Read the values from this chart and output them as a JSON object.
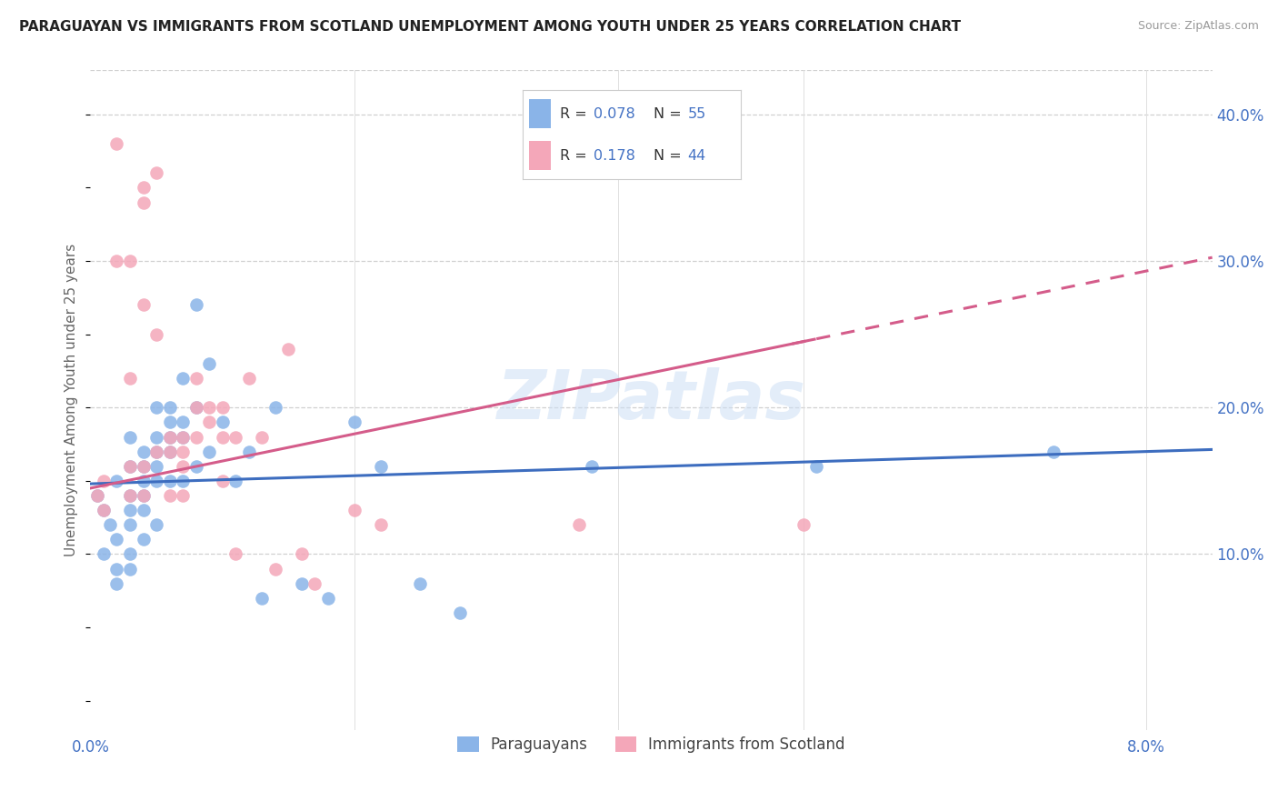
{
  "title": "PARAGUAYAN VS IMMIGRANTS FROM SCOTLAND UNEMPLOYMENT AMONG YOUTH UNDER 25 YEARS CORRELATION CHART",
  "source": "Source: ZipAtlas.com",
  "ylabel": "Unemployment Among Youth under 25 years",
  "blue_color": "#8ab4e8",
  "pink_color": "#f4a7b9",
  "line_blue": "#3d6dbf",
  "line_pink": "#d45c8a",
  "watermark": "ZIPatlas",
  "xlim": [
    0.0,
    0.085
  ],
  "ylim": [
    -0.02,
    0.43
  ],
  "paraguayan_x": [
    0.0005,
    0.001,
    0.001,
    0.0015,
    0.002,
    0.002,
    0.002,
    0.002,
    0.003,
    0.003,
    0.003,
    0.003,
    0.003,
    0.003,
    0.003,
    0.004,
    0.004,
    0.004,
    0.004,
    0.004,
    0.004,
    0.005,
    0.005,
    0.005,
    0.005,
    0.005,
    0.005,
    0.006,
    0.006,
    0.006,
    0.006,
    0.006,
    0.007,
    0.007,
    0.007,
    0.007,
    0.008,
    0.008,
    0.008,
    0.009,
    0.009,
    0.01,
    0.011,
    0.012,
    0.013,
    0.014,
    0.016,
    0.018,
    0.02,
    0.022,
    0.025,
    0.028,
    0.038,
    0.055,
    0.073
  ],
  "paraguayan_y": [
    0.14,
    0.13,
    0.1,
    0.12,
    0.15,
    0.09,
    0.11,
    0.08,
    0.16,
    0.14,
    0.13,
    0.12,
    0.1,
    0.18,
    0.09,
    0.17,
    0.16,
    0.15,
    0.14,
    0.13,
    0.11,
    0.2,
    0.18,
    0.17,
    0.16,
    0.15,
    0.12,
    0.2,
    0.19,
    0.18,
    0.17,
    0.15,
    0.22,
    0.19,
    0.18,
    0.15,
    0.27,
    0.2,
    0.16,
    0.23,
    0.17,
    0.19,
    0.15,
    0.17,
    0.07,
    0.2,
    0.08,
    0.07,
    0.19,
    0.16,
    0.08,
    0.06,
    0.16,
    0.16,
    0.17
  ],
  "scotland_x": [
    0.0005,
    0.001,
    0.001,
    0.002,
    0.002,
    0.003,
    0.003,
    0.003,
    0.003,
    0.004,
    0.004,
    0.004,
    0.004,
    0.004,
    0.005,
    0.005,
    0.005,
    0.006,
    0.006,
    0.006,
    0.007,
    0.007,
    0.007,
    0.007,
    0.008,
    0.008,
    0.008,
    0.009,
    0.009,
    0.01,
    0.01,
    0.01,
    0.011,
    0.011,
    0.012,
    0.013,
    0.014,
    0.015,
    0.016,
    0.017,
    0.02,
    0.022,
    0.037,
    0.054
  ],
  "scotland_y": [
    0.14,
    0.13,
    0.15,
    0.38,
    0.3,
    0.22,
    0.16,
    0.14,
    0.3,
    0.35,
    0.34,
    0.27,
    0.16,
    0.14,
    0.36,
    0.25,
    0.17,
    0.18,
    0.17,
    0.14,
    0.18,
    0.17,
    0.16,
    0.14,
    0.22,
    0.2,
    0.18,
    0.2,
    0.19,
    0.2,
    0.18,
    0.15,
    0.18,
    0.1,
    0.22,
    0.18,
    0.09,
    0.24,
    0.1,
    0.08,
    0.13,
    0.12,
    0.12,
    0.12
  ]
}
